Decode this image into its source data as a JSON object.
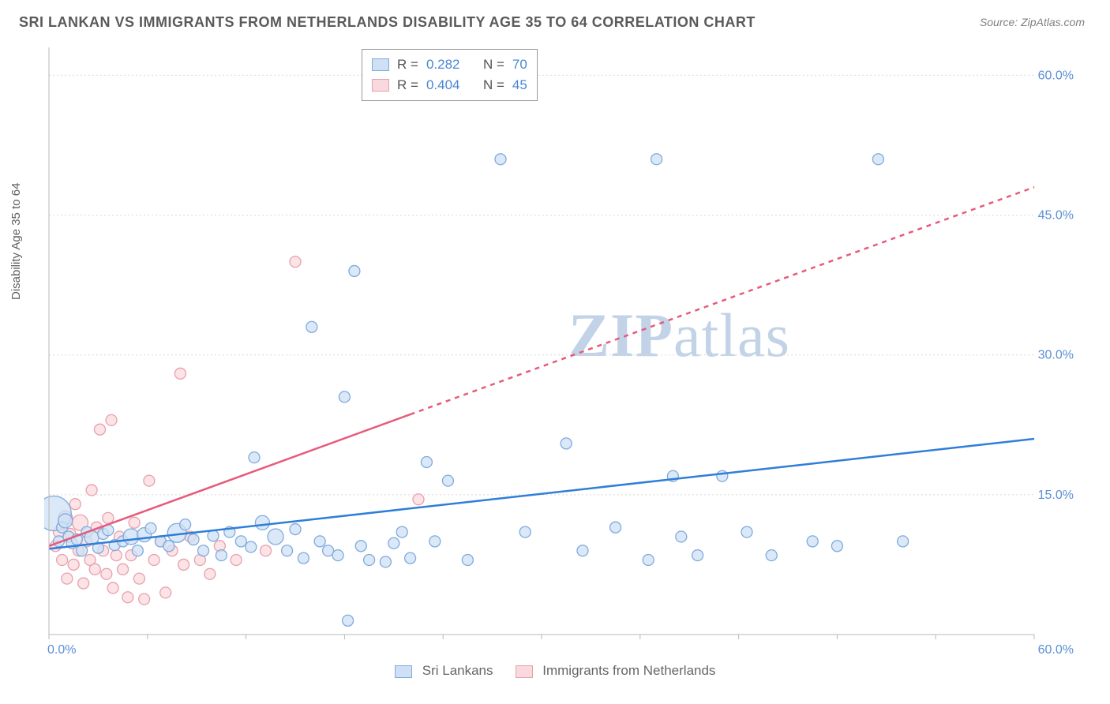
{
  "title": "SRI LANKAN VS IMMIGRANTS FROM NETHERLANDS DISABILITY AGE 35 TO 64 CORRELATION CHART",
  "source": "Source: ZipAtlas.com",
  "y_axis_title": "Disability Age 35 to 64",
  "watermark_a": "ZIP",
  "watermark_b": "atlas",
  "chart": {
    "type": "scatter",
    "xlim": [
      0,
      60
    ],
    "ylim": [
      0,
      63
    ],
    "x_origin_label": "0.0%",
    "x_max_label": "60.0%",
    "y_ticks": [
      15,
      30,
      45,
      60
    ],
    "y_tick_labels": [
      "15.0%",
      "30.0%",
      "45.0%",
      "60.0%"
    ],
    "grid_color": "#d9d9d9",
    "axis_color": "#b8b8b8",
    "label_color": "#5b8fd6",
    "background_color": "#ffffff",
    "tick_positions_x": [
      0,
      6,
      12,
      18,
      24,
      30,
      36,
      42,
      48,
      54,
      60
    ]
  },
  "series": [
    {
      "name": "Sri Lankans",
      "label": "Sri Lankans",
      "fill": "#cfe0f4",
      "stroke": "#7eabde",
      "trend_color": "#2f7ed8",
      "trend": {
        "x1": 0,
        "y1": 9.2,
        "x2": 60,
        "y2": 21.0,
        "dash_from_x": null
      },
      "stats": {
        "R_label": "R =",
        "R": "0.282",
        "N_label": "N =",
        "N": "70"
      },
      "points": [
        {
          "x": 0.3,
          "y": 13.0,
          "r": 22
        },
        {
          "x": 0.6,
          "y": 10.0,
          "r": 7
        },
        {
          "x": 0.8,
          "y": 11.5,
          "r": 7
        },
        {
          "x": 1.0,
          "y": 12.2,
          "r": 9
        },
        {
          "x": 1.2,
          "y": 10.5,
          "r": 7
        },
        {
          "x": 1.4,
          "y": 9.8,
          "r": 7
        },
        {
          "x": 1.7,
          "y": 10.2,
          "r": 7
        },
        {
          "x": 2.0,
          "y": 9.0,
          "r": 7
        },
        {
          "x": 2.3,
          "y": 11.0,
          "r": 7
        },
        {
          "x": 2.6,
          "y": 10.4,
          "r": 9
        },
        {
          "x": 3.0,
          "y": 9.3,
          "r": 7
        },
        {
          "x": 3.3,
          "y": 10.8,
          "r": 7
        },
        {
          "x": 3.6,
          "y": 11.2,
          "r": 7
        },
        {
          "x": 4.0,
          "y": 9.6,
          "r": 7
        },
        {
          "x": 4.5,
          "y": 10.0,
          "r": 7
        },
        {
          "x": 5.0,
          "y": 10.5,
          "r": 10
        },
        {
          "x": 5.4,
          "y": 9.0,
          "r": 7
        },
        {
          "x": 5.8,
          "y": 10.7,
          "r": 9
        },
        {
          "x": 6.2,
          "y": 11.4,
          "r": 7
        },
        {
          "x": 6.8,
          "y": 10.0,
          "r": 7
        },
        {
          "x": 7.3,
          "y": 9.5,
          "r": 7
        },
        {
          "x": 7.8,
          "y": 10.9,
          "r": 12
        },
        {
          "x": 8.3,
          "y": 11.8,
          "r": 7
        },
        {
          "x": 8.8,
          "y": 10.2,
          "r": 7
        },
        {
          "x": 9.4,
          "y": 9.0,
          "r": 7
        },
        {
          "x": 10.0,
          "y": 10.6,
          "r": 7
        },
        {
          "x": 10.5,
          "y": 8.5,
          "r": 7
        },
        {
          "x": 11.0,
          "y": 11.0,
          "r": 7
        },
        {
          "x": 11.7,
          "y": 10.0,
          "r": 7
        },
        {
          "x": 12.3,
          "y": 9.4,
          "r": 7
        },
        {
          "x": 12.5,
          "y": 19.0,
          "r": 7
        },
        {
          "x": 13.0,
          "y": 12.0,
          "r": 9
        },
        {
          "x": 13.8,
          "y": 10.5,
          "r": 10
        },
        {
          "x": 14.5,
          "y": 9.0,
          "r": 7
        },
        {
          "x": 15.0,
          "y": 11.3,
          "r": 7
        },
        {
          "x": 15.5,
          "y": 8.2,
          "r": 7
        },
        {
          "x": 16.0,
          "y": 33.0,
          "r": 7
        },
        {
          "x": 16.5,
          "y": 10.0,
          "r": 7
        },
        {
          "x": 17.0,
          "y": 9.0,
          "r": 7
        },
        {
          "x": 17.6,
          "y": 8.5,
          "r": 7
        },
        {
          "x": 18.0,
          "y": 25.5,
          "r": 7
        },
        {
          "x": 18.2,
          "y": 1.5,
          "r": 7
        },
        {
          "x": 18.6,
          "y": 39.0,
          "r": 7
        },
        {
          "x": 19.0,
          "y": 9.5,
          "r": 7
        },
        {
          "x": 19.5,
          "y": 8.0,
          "r": 7
        },
        {
          "x": 20.5,
          "y": 7.8,
          "r": 7
        },
        {
          "x": 21.0,
          "y": 9.8,
          "r": 7
        },
        {
          "x": 21.5,
          "y": 11.0,
          "r": 7
        },
        {
          "x": 22.0,
          "y": 8.2,
          "r": 7
        },
        {
          "x": 23.0,
          "y": 18.5,
          "r": 7
        },
        {
          "x": 23.5,
          "y": 10.0,
          "r": 7
        },
        {
          "x": 24.3,
          "y": 16.5,
          "r": 7
        },
        {
          "x": 25.5,
          "y": 8.0,
          "r": 7
        },
        {
          "x": 27.5,
          "y": 51.0,
          "r": 7
        },
        {
          "x": 29.0,
          "y": 11.0,
          "r": 7
        },
        {
          "x": 31.5,
          "y": 20.5,
          "r": 7
        },
        {
          "x": 32.5,
          "y": 9.0,
          "r": 7
        },
        {
          "x": 34.5,
          "y": 11.5,
          "r": 7
        },
        {
          "x": 36.5,
          "y": 8.0,
          "r": 7
        },
        {
          "x": 37.0,
          "y": 51.0,
          "r": 7
        },
        {
          "x": 38.0,
          "y": 17.0,
          "r": 7
        },
        {
          "x": 38.5,
          "y": 10.5,
          "r": 7
        },
        {
          "x": 39.5,
          "y": 8.5,
          "r": 7
        },
        {
          "x": 41.0,
          "y": 17.0,
          "r": 7
        },
        {
          "x": 42.5,
          "y": 11.0,
          "r": 7
        },
        {
          "x": 44.0,
          "y": 8.5,
          "r": 7
        },
        {
          "x": 46.5,
          "y": 10.0,
          "r": 7
        },
        {
          "x": 48.0,
          "y": 9.5,
          "r": 7
        },
        {
          "x": 50.5,
          "y": 51.0,
          "r": 7
        },
        {
          "x": 52.0,
          "y": 10.0,
          "r": 7
        }
      ]
    },
    {
      "name": "Immigrants from Netherlands",
      "label": "Immigrants from Netherlands",
      "fill": "#f9d9de",
      "stroke": "#e8a0ad",
      "trend_color": "#e75b7a",
      "trend": {
        "x1": 0,
        "y1": 9.5,
        "x2": 60,
        "y2": 48.0,
        "dash_from_x": 22
      },
      "stats": {
        "R_label": "R =",
        "R": "0.404",
        "N_label": "N =",
        "N": "45"
      },
      "points": [
        {
          "x": 0.4,
          "y": 9.5,
          "r": 7
        },
        {
          "x": 0.6,
          "y": 11.0,
          "r": 7
        },
        {
          "x": 0.8,
          "y": 8.0,
          "r": 7
        },
        {
          "x": 1.0,
          "y": 12.5,
          "r": 9
        },
        {
          "x": 1.1,
          "y": 6.0,
          "r": 7
        },
        {
          "x": 1.3,
          "y": 10.8,
          "r": 7
        },
        {
          "x": 1.5,
          "y": 7.5,
          "r": 7
        },
        {
          "x": 1.6,
          "y": 14.0,
          "r": 7
        },
        {
          "x": 1.8,
          "y": 9.0,
          "r": 7
        },
        {
          "x": 1.9,
          "y": 12.0,
          "r": 10
        },
        {
          "x": 2.1,
          "y": 5.5,
          "r": 7
        },
        {
          "x": 2.3,
          "y": 10.0,
          "r": 7
        },
        {
          "x": 2.5,
          "y": 8.0,
          "r": 7
        },
        {
          "x": 2.6,
          "y": 15.5,
          "r": 7
        },
        {
          "x": 2.8,
          "y": 7.0,
          "r": 7
        },
        {
          "x": 2.9,
          "y": 11.5,
          "r": 7
        },
        {
          "x": 3.1,
          "y": 22.0,
          "r": 7
        },
        {
          "x": 3.3,
          "y": 9.0,
          "r": 7
        },
        {
          "x": 3.5,
          "y": 6.5,
          "r": 7
        },
        {
          "x": 3.6,
          "y": 12.5,
          "r": 7
        },
        {
          "x": 3.8,
          "y": 23.0,
          "r": 7
        },
        {
          "x": 3.9,
          "y": 5.0,
          "r": 7
        },
        {
          "x": 4.1,
          "y": 8.5,
          "r": 7
        },
        {
          "x": 4.3,
          "y": 10.5,
          "r": 7
        },
        {
          "x": 4.5,
          "y": 7.0,
          "r": 7
        },
        {
          "x": 4.8,
          "y": 4.0,
          "r": 7
        },
        {
          "x": 5.0,
          "y": 8.5,
          "r": 7
        },
        {
          "x": 5.2,
          "y": 12.0,
          "r": 7
        },
        {
          "x": 5.5,
          "y": 6.0,
          "r": 7
        },
        {
          "x": 5.8,
          "y": 3.8,
          "r": 7
        },
        {
          "x": 6.1,
          "y": 16.5,
          "r": 7
        },
        {
          "x": 6.4,
          "y": 8.0,
          "r": 7
        },
        {
          "x": 6.8,
          "y": 10.0,
          "r": 7
        },
        {
          "x": 7.1,
          "y": 4.5,
          "r": 7
        },
        {
          "x": 7.5,
          "y": 9.0,
          "r": 7
        },
        {
          "x": 8.0,
          "y": 28.0,
          "r": 7
        },
        {
          "x": 8.2,
          "y": 7.5,
          "r": 7
        },
        {
          "x": 8.6,
          "y": 10.5,
          "r": 7
        },
        {
          "x": 9.2,
          "y": 8.0,
          "r": 7
        },
        {
          "x": 9.8,
          "y": 6.5,
          "r": 7
        },
        {
          "x": 10.4,
          "y": 9.5,
          "r": 7
        },
        {
          "x": 11.4,
          "y": 8.0,
          "r": 7
        },
        {
          "x": 13.2,
          "y": 9.0,
          "r": 7
        },
        {
          "x": 15.0,
          "y": 40.0,
          "r": 7
        },
        {
          "x": 22.5,
          "y": 14.5,
          "r": 7
        }
      ]
    }
  ]
}
